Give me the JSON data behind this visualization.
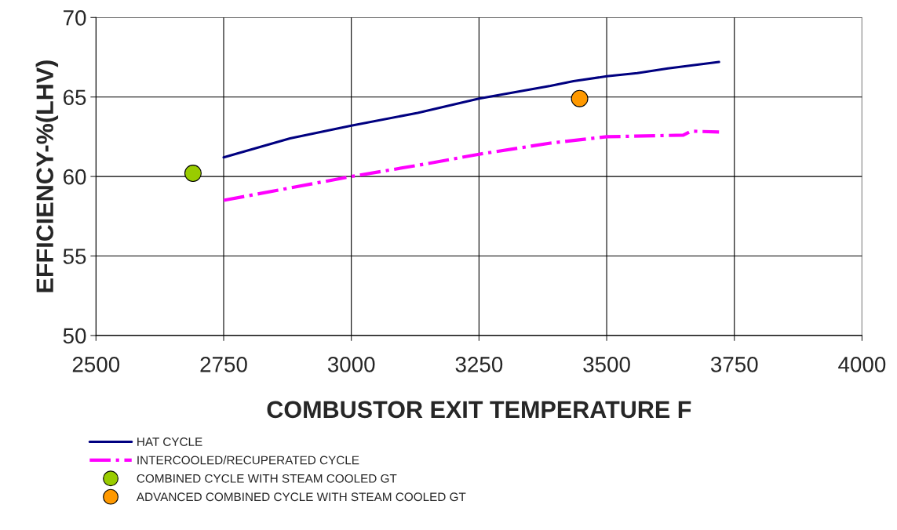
{
  "chart_data": {
    "type": "line",
    "xlabel": "COMBUSTOR EXIT TEMPERATURE F",
    "ylabel": "EFFICIENCY-%(LHV)",
    "xlim": [
      2500,
      4000
    ],
    "xticks": [
      2500,
      2750,
      3000,
      3250,
      3500,
      3750,
      4000
    ],
    "ylim": [
      50,
      70
    ],
    "yticks": [
      50,
      55,
      60,
      65,
      70
    ],
    "grid": true,
    "legend": "bottom",
    "series": [
      {
        "name": "HAT CYCLE",
        "color": "#000080",
        "line_style": "solid",
        "x": [
          2750,
          2880,
          3000,
          3130,
          3250,
          3390,
          3435,
          3500,
          3560,
          3620,
          3720
        ],
        "values": [
          61.2,
          62.4,
          63.2,
          64.0,
          64.9,
          65.7,
          66.0,
          66.3,
          66.5,
          66.8,
          67.2
        ]
      },
      {
        "name": "INTERCOOLED/RECUPERATED CYCLE",
        "color": "#ff00ff",
        "line_style": "dashdot",
        "x": [
          2750,
          3000,
          3130,
          3250,
          3390,
          3500,
          3650,
          3665,
          3720
        ],
        "values": [
          58.5,
          60.0,
          60.7,
          61.4,
          62.1,
          62.5,
          62.6,
          62.85,
          62.8
        ]
      },
      {
        "name": "COMBINED CYCLE WITH STEAM COOLED GT",
        "type": "scatter",
        "marker": "circle",
        "color": "#99cc00",
        "x": [
          2690
        ],
        "values": [
          60.2
        ]
      },
      {
        "name": "ADVANCED COMBINED CYCLE WITH STEAM COOLED GT",
        "type": "scatter",
        "marker": "circle",
        "color": "#ff9900",
        "x": [
          3447
        ],
        "values": [
          64.9
        ]
      }
    ]
  }
}
